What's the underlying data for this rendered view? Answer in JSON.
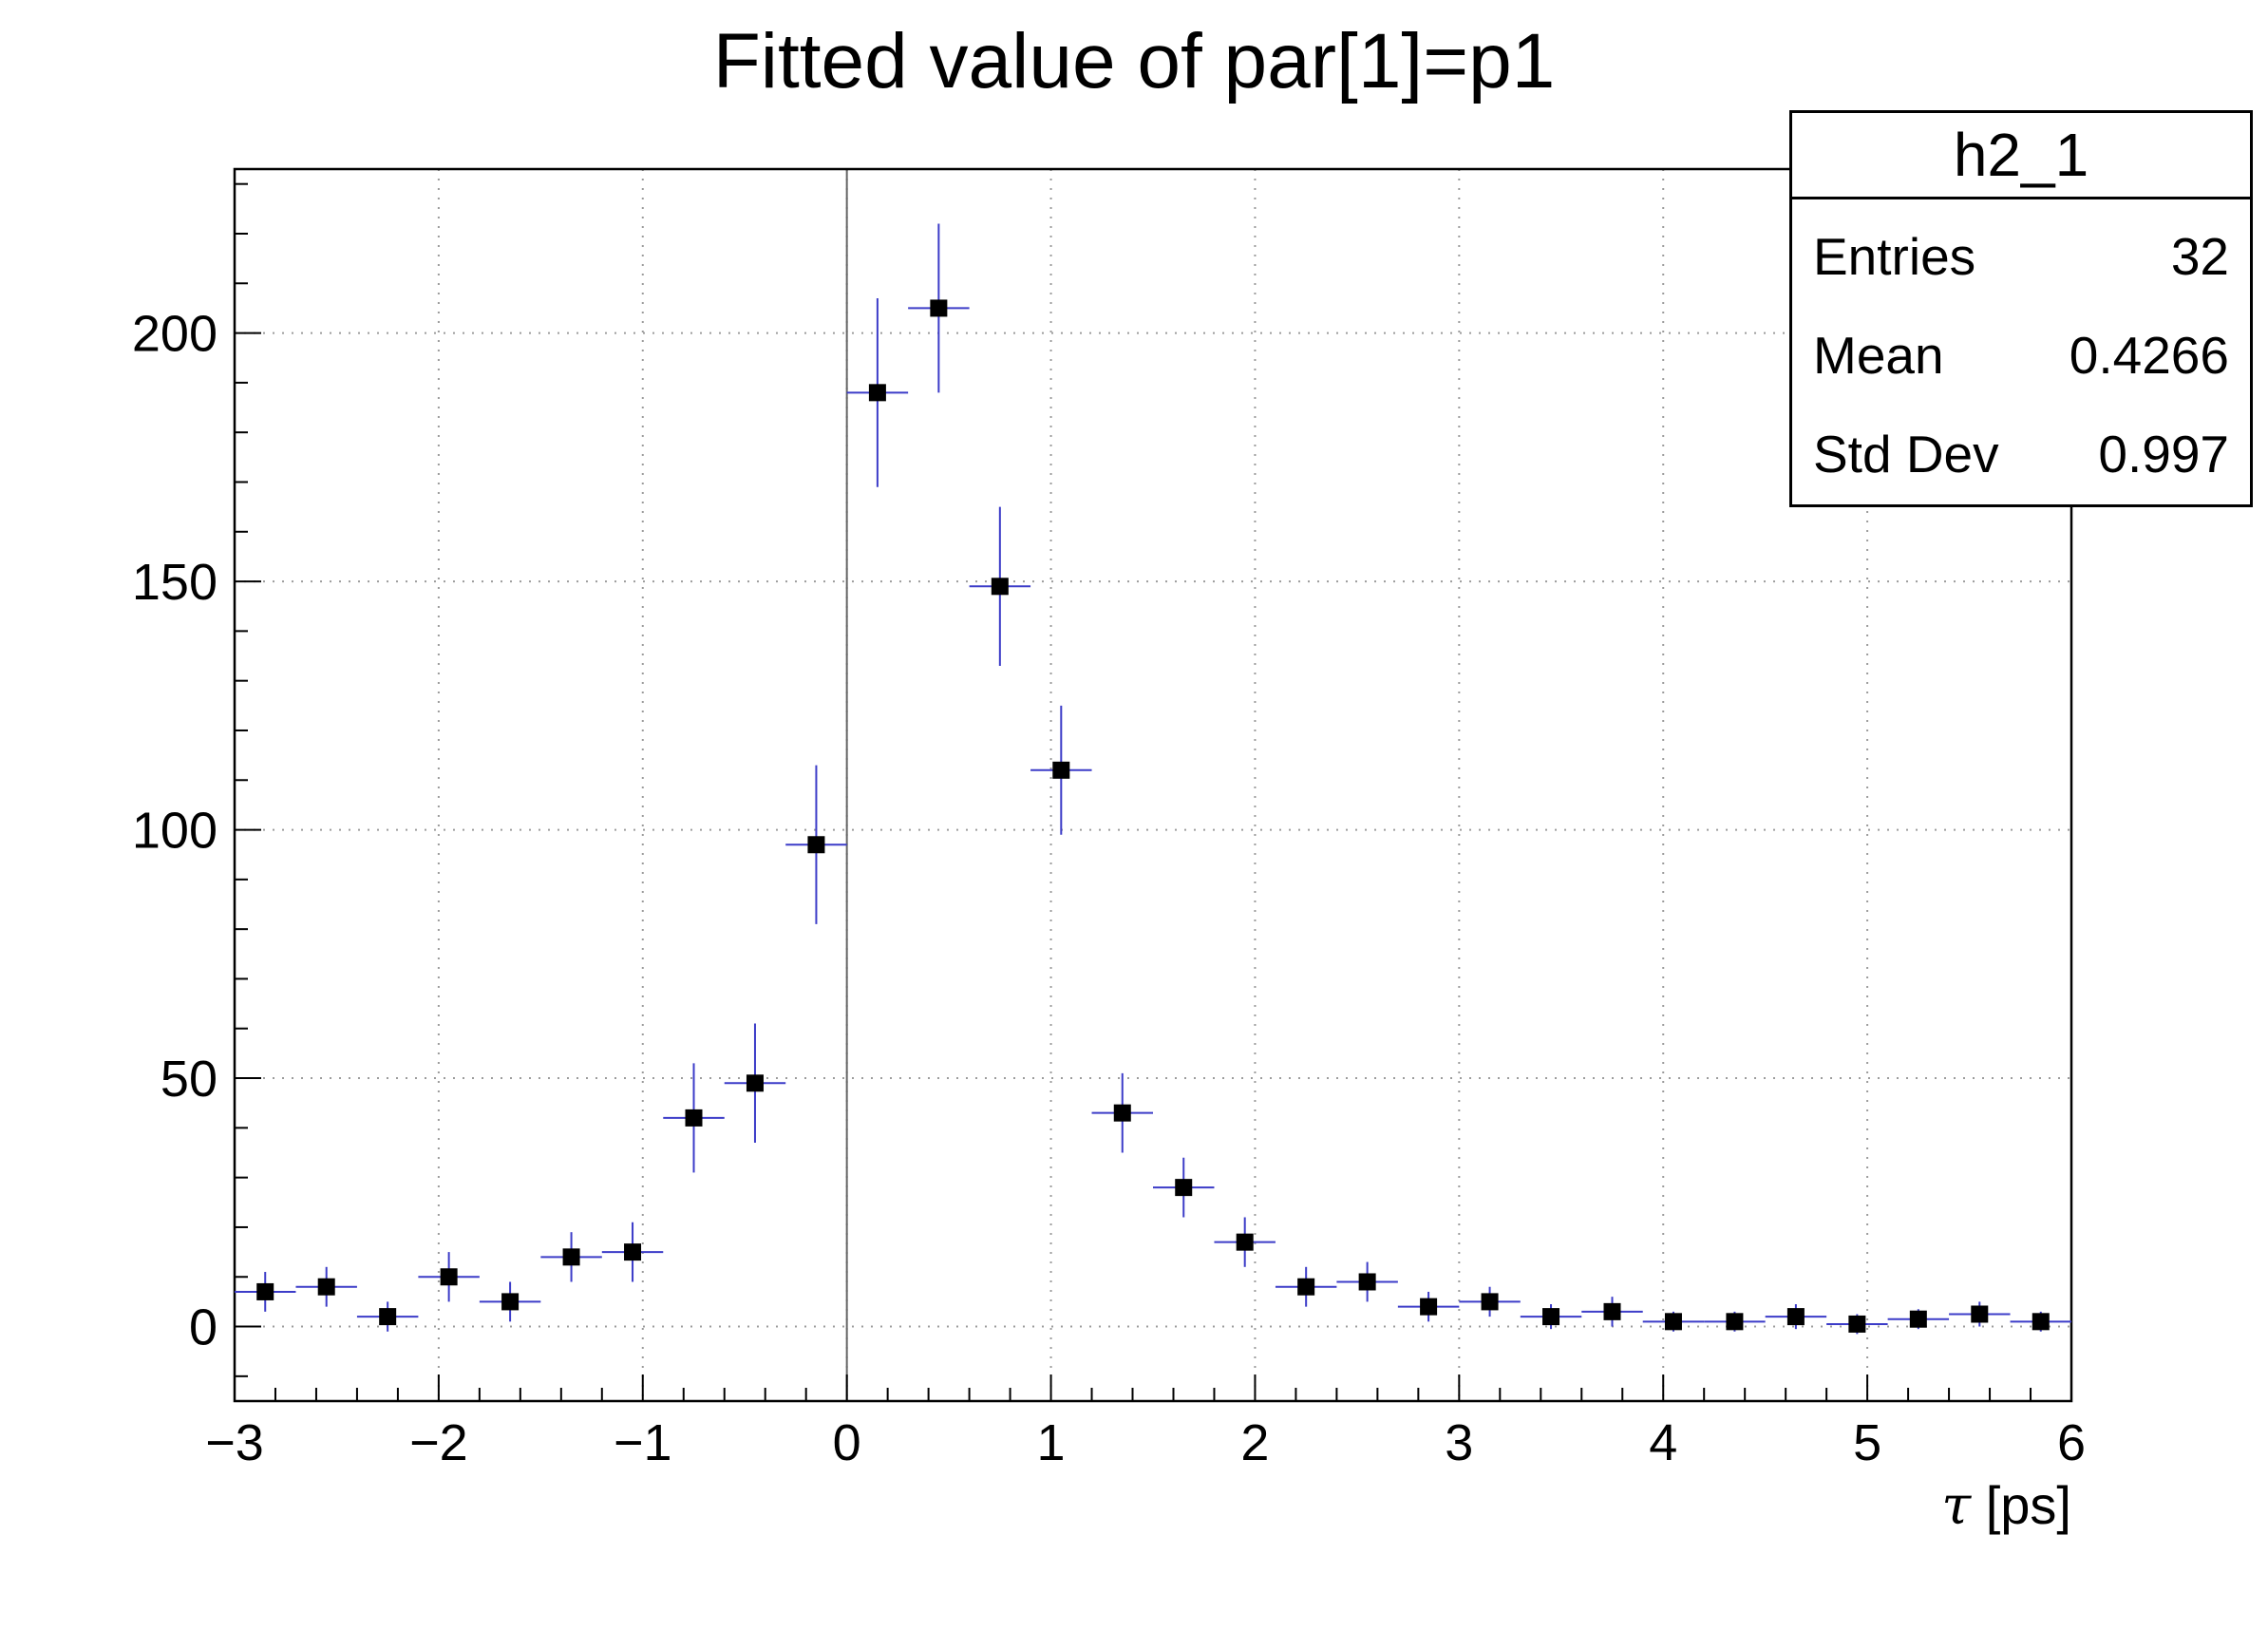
{
  "chart_data": {
    "type": "scatter",
    "title": "Fitted value of par[1]=p1",
    "xlabel": "τ [ps]",
    "ylabel": "",
    "xlim": [
      -3,
      6
    ],
    "ylim": [
      -15,
      233
    ],
    "x_ticks": [
      -3,
      -2,
      -1,
      0,
      1,
      2,
      3,
      4,
      5,
      6
    ],
    "x_tick_labels": [
      "−3",
      "−2",
      "−1",
      "0",
      "1",
      "2",
      "3",
      "4",
      "5",
      "6"
    ],
    "y_ticks": [
      0,
      50,
      100,
      150,
      200
    ],
    "y_tick_labels": [
      "0",
      "50",
      "100",
      "150",
      "200"
    ],
    "x_minor_step": 0.2,
    "y_minor_step": 10,
    "grid": true,
    "legend": "none",
    "vline_x": 0,
    "marker": "filled-square",
    "marker_size": 18,
    "x_half_width": 0.15,
    "colors": {
      "marker": "#000000",
      "error": "#3c3cc8",
      "grid": "#9c9c9c",
      "vline": "#666666",
      "frame": "#000000"
    },
    "points": [
      {
        "x": -2.85,
        "y": 7,
        "ey": 4
      },
      {
        "x": -2.55,
        "y": 8,
        "ey": 4
      },
      {
        "x": -2.25,
        "y": 2,
        "ey": 3
      },
      {
        "x": -1.95,
        "y": 10,
        "ey": 5
      },
      {
        "x": -1.65,
        "y": 5,
        "ey": 4
      },
      {
        "x": -1.35,
        "y": 14,
        "ey": 5
      },
      {
        "x": -1.05,
        "y": 15,
        "ey": 6
      },
      {
        "x": -0.75,
        "y": 42,
        "ey": 11
      },
      {
        "x": -0.45,
        "y": 49,
        "ey": 12
      },
      {
        "x": -0.15,
        "y": 97,
        "ey": 16
      },
      {
        "x": 0.15,
        "y": 188,
        "ey": 19
      },
      {
        "x": 0.45,
        "y": 205,
        "ey": 17
      },
      {
        "x": 0.75,
        "y": 149,
        "ey": 16
      },
      {
        "x": 1.05,
        "y": 112,
        "ey": 13
      },
      {
        "x": 1.35,
        "y": 43,
        "ey": 8
      },
      {
        "x": 1.65,
        "y": 28,
        "ey": 6
      },
      {
        "x": 1.95,
        "y": 17,
        "ey": 5
      },
      {
        "x": 2.25,
        "y": 8,
        "ey": 4
      },
      {
        "x": 2.55,
        "y": 9,
        "ey": 4
      },
      {
        "x": 2.85,
        "y": 4,
        "ey": 3
      },
      {
        "x": 3.15,
        "y": 5,
        "ey": 3
      },
      {
        "x": 3.45,
        "y": 2,
        "ey": 2.5
      },
      {
        "x": 3.75,
        "y": 3,
        "ey": 3
      },
      {
        "x": 4.05,
        "y": 1,
        "ey": 2
      },
      {
        "x": 4.35,
        "y": 1,
        "ey": 2
      },
      {
        "x": 4.65,
        "y": 2,
        "ey": 2.5
      },
      {
        "x": 4.95,
        "y": 0.5,
        "ey": 2
      },
      {
        "x": 5.25,
        "y": 1.5,
        "ey": 2
      },
      {
        "x": 5.55,
        "y": 2.5,
        "ey": 2.5
      },
      {
        "x": 5.85,
        "y": 1,
        "ey": 2
      }
    ]
  },
  "stats_box": {
    "title": "h2_1",
    "rows": [
      {
        "label": "Entries",
        "value": "32"
      },
      {
        "label": "Mean",
        "value": "0.4266"
      },
      {
        "label": "Std Dev",
        "value": "0.997"
      }
    ]
  }
}
